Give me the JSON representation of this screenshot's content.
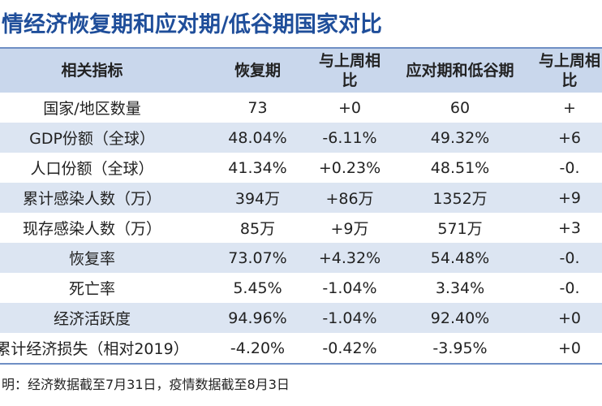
{
  "title": "情经济恢复期和应对期/低谷期国家对比",
  "table": {
    "header": [
      "相关指标",
      "恢复期",
      "与上周相比",
      "应对期和低谷期",
      "与上周相比"
    ],
    "rows": [
      [
        "国家/地区数量",
        "73",
        "+0",
        "60",
        "+"
      ],
      [
        "GDP份额（全球）",
        "48.04%",
        "-6.11%",
        "49.32%",
        "+6"
      ],
      [
        "人口份额（全球）",
        "41.34%",
        "+0.23%",
        "48.51%",
        "-0."
      ],
      [
        "累计感染人数（万）",
        "394万",
        "+86万",
        "1352万",
        "+9"
      ],
      [
        "现存感染人数（万）",
        "85万",
        "+9万",
        "571万",
        "+3"
      ],
      [
        "恢复率",
        "73.07%",
        "+4.32%",
        "54.48%",
        "-0."
      ],
      [
        "死亡率",
        "5.45%",
        "-1.04%",
        "3.34%",
        "-0."
      ],
      [
        "经济活跃度",
        "94.96%",
        "-1.04%",
        "92.40%",
        "+0"
      ],
      [
        "累计经济损失（相对2019）",
        "-4.20%",
        "-0.42%",
        "-3.95%",
        "+0"
      ]
    ]
  },
  "footnote": "明：经济数据截至7月31日，疫情数据截至8月3日"
}
